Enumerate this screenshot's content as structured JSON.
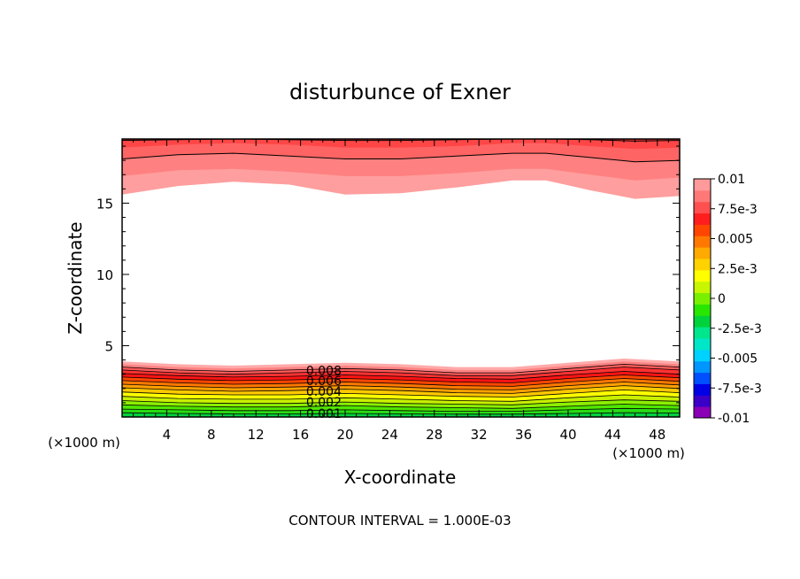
{
  "chart_data": {
    "type": "heatmap",
    "title": "disturbunce of Exner",
    "xlabel": "X-coordinate",
    "ylabel": "Z-coordinate",
    "x_unit": "(×1000 m)",
    "y_unit": "(×1000 m)",
    "xlim": [
      0,
      50
    ],
    "ylim": [
      0,
      19.5
    ],
    "x_ticks": [
      "4",
      "8",
      "12",
      "16",
      "20",
      "24",
      "28",
      "32",
      "36",
      "40",
      "44",
      "48"
    ],
    "y_ticks": [
      "5",
      "10",
      "15"
    ],
    "footer": "CONTOUR INTERVAL = 1.000E-03",
    "colorbar": {
      "labels": [
        "0.01",
        "7.5e-3",
        "0.005",
        "2.5e-3",
        "0",
        "-2.5e-3",
        "-0.005",
        "-7.5e-3",
        "-0.01"
      ],
      "min": -0.01,
      "max": 0.01,
      "colors": [
        "#8b00b6",
        "#3a00c8",
        "#0000e6",
        "#0050ff",
        "#0096ff",
        "#00d2ff",
        "#00e6c8",
        "#00e68c",
        "#00d23c",
        "#28e600",
        "#78f000",
        "#c8f500",
        "#ffff00",
        "#ffd200",
        "#ffaa00",
        "#ff7800",
        "#ff4600",
        "#ff1e1e",
        "#ff5050",
        "#ff7878",
        "#ff9a9a"
      ]
    },
    "contour_labels": [
      "0.008",
      "0.006",
      "0.004",
      "0.002",
      "0.001"
    ],
    "upper_band": {
      "levels": [
        0.001,
        0.002,
        0.003,
        0.004,
        0.005
      ],
      "colors": [
        "#ff9e9e",
        "#ff8080",
        "#ff6464",
        "#ff4646",
        "#ff3232"
      ],
      "x": [
        0,
        5,
        10,
        15,
        20,
        25,
        30,
        35,
        38,
        42,
        46,
        50
      ],
      "boundary_z": [
        [
          15.6,
          16.2,
          16.5,
          16.3,
          15.6,
          15.7,
          16.1,
          16.6,
          16.6,
          15.9,
          15.3,
          15.5
        ],
        [
          16.9,
          17.3,
          17.4,
          17.2,
          16.9,
          16.9,
          17.1,
          17.4,
          17.4,
          17.0,
          16.6,
          16.8
        ],
        [
          18.1,
          18.4,
          18.5,
          18.3,
          18.1,
          18.1,
          18.3,
          18.5,
          18.5,
          18.2,
          17.9,
          18.0
        ],
        [
          18.9,
          19.1,
          19.2,
          19.1,
          18.9,
          18.9,
          19.0,
          19.2,
          19.2,
          19.0,
          18.8,
          18.9
        ],
        [
          19.4,
          19.45,
          19.5,
          19.45,
          19.4,
          19.4,
          19.45,
          19.5,
          19.5,
          19.45,
          19.35,
          19.4
        ]
      ]
    },
    "lower_band": {
      "levels": [
        0.001,
        0.0015,
        0.002,
        0.0025,
        0.003,
        0.0035,
        0.004,
        0.0045,
        0.005,
        0.0055,
        0.006,
        0.0065,
        0.007,
        0.0075,
        0.008
      ],
      "colors": [
        "#ffaaaa",
        "#ff8282",
        "#ff5a5a",
        "#ff3232",
        "#ff1414",
        "#ff4600",
        "#ff7800",
        "#ffa000",
        "#ffc800",
        "#ffff00",
        "#c8f000",
        "#8cf000",
        "#50e600",
        "#28dc14",
        "#00d23c"
      ],
      "x": [
        0,
        5,
        10,
        15,
        20,
        25,
        30,
        35,
        40,
        45,
        50
      ],
      "boundary_z": [
        [
          3.9,
          3.7,
          3.6,
          3.7,
          3.8,
          3.7,
          3.5,
          3.5,
          3.8,
          4.1,
          3.9
        ],
        [
          3.7,
          3.5,
          3.4,
          3.5,
          3.6,
          3.5,
          3.3,
          3.3,
          3.6,
          3.9,
          3.7
        ],
        [
          3.5,
          3.3,
          3.2,
          3.3,
          3.4,
          3.3,
          3.1,
          3.1,
          3.4,
          3.7,
          3.5
        ],
        [
          3.3,
          3.1,
          3.0,
          3.1,
          3.2,
          3.1,
          2.9,
          2.9,
          3.2,
          3.5,
          3.3
        ],
        [
          3.05,
          2.9,
          2.8,
          2.85,
          2.95,
          2.85,
          2.7,
          2.65,
          2.95,
          3.2,
          3.0
        ],
        [
          2.8,
          2.65,
          2.55,
          2.6,
          2.7,
          2.6,
          2.45,
          2.4,
          2.7,
          2.95,
          2.75
        ],
        [
          2.55,
          2.4,
          2.3,
          2.35,
          2.45,
          2.35,
          2.2,
          2.15,
          2.45,
          2.7,
          2.5
        ],
        [
          2.3,
          2.15,
          2.05,
          2.1,
          2.2,
          2.1,
          1.95,
          1.9,
          2.2,
          2.45,
          2.25
        ],
        [
          2.05,
          1.9,
          1.8,
          1.85,
          1.95,
          1.85,
          1.7,
          1.65,
          1.95,
          2.2,
          2.0
        ],
        [
          1.75,
          1.6,
          1.55,
          1.55,
          1.65,
          1.55,
          1.45,
          1.4,
          1.65,
          1.9,
          1.7
        ],
        [
          1.45,
          1.3,
          1.25,
          1.25,
          1.35,
          1.25,
          1.15,
          1.1,
          1.35,
          1.55,
          1.4
        ],
        [
          1.15,
          1.0,
          0.95,
          0.95,
          1.05,
          0.95,
          0.9,
          0.85,
          1.05,
          1.2,
          1.1
        ],
        [
          0.85,
          0.75,
          0.7,
          0.7,
          0.8,
          0.7,
          0.65,
          0.6,
          0.75,
          0.9,
          0.8
        ],
        [
          0.55,
          0.5,
          0.45,
          0.45,
          0.5,
          0.45,
          0.4,
          0.4,
          0.5,
          0.6,
          0.55
        ],
        [
          0.3,
          0.25,
          0.22,
          0.22,
          0.25,
          0.22,
          0.2,
          0.2,
          0.25,
          0.3,
          0.28
        ]
      ]
    }
  }
}
